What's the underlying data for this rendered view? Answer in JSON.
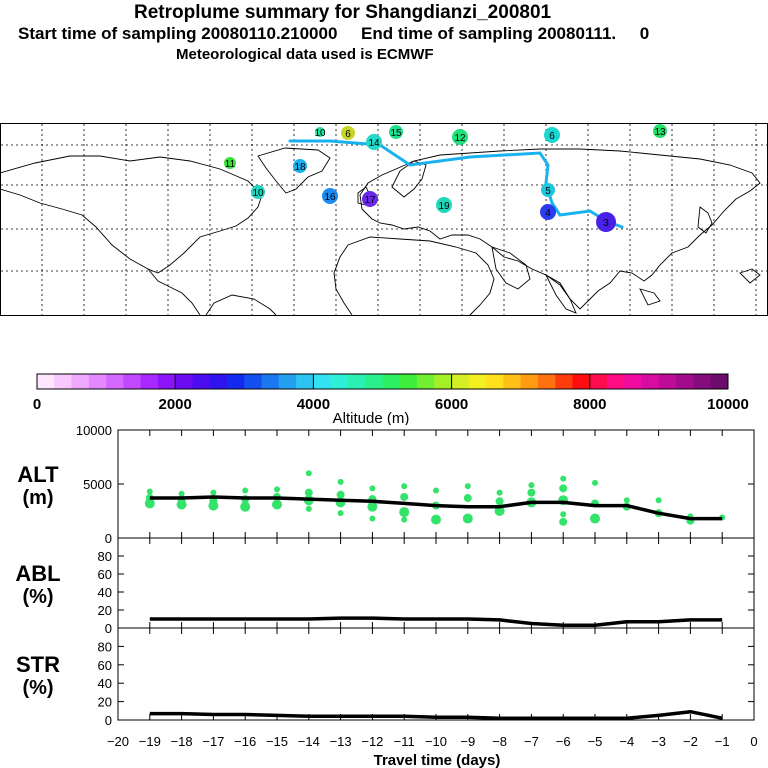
{
  "titles": {
    "line1": "Retroplume summary for Shangdianzi_200801",
    "line2": "Start time of sampling 20080110.210000     End time of sampling 20080111.     0",
    "line3": "Meteorological data used is ECMWF"
  },
  "colors": {
    "mean_line": "#000000",
    "points": "#33e36a",
    "plume_path": "#1ab2ee"
  },
  "map_labels": [
    {
      "day": "10",
      "color": "#22e0a0"
    },
    {
      "day": "6",
      "color": "#c8d42a"
    },
    {
      "day": "14",
      "color": "#22d8c8"
    },
    {
      "day": "15",
      "color": "#1ee090"
    },
    {
      "day": "12",
      "color": "#1fe07a"
    },
    {
      "day": "6",
      "color": "#1cd6d0"
    },
    {
      "day": "13",
      "color": "#22e06a"
    },
    {
      "day": "18",
      "color": "#1ab2ee"
    },
    {
      "day": "11",
      "color": "#3ce03a"
    },
    {
      "day": "10",
      "color": "#1cd6c0"
    },
    {
      "day": "16",
      "color": "#1a8cf0"
    },
    {
      "day": "17",
      "color": "#6a28e8"
    },
    {
      "day": "19",
      "color": "#1ed8b8"
    },
    {
      "day": "5",
      "color": "#1cc8e0"
    },
    {
      "day": "4",
      "color": "#2a3cf0"
    },
    {
      "day": "3",
      "color": "#4a20e8"
    }
  ],
  "colorbar": {
    "tick_labels": [
      "0",
      "2000",
      "4000",
      "6000",
      "8000",
      "10000"
    ],
    "title": "Altitude (m)",
    "range": [
      0,
      10000
    ],
    "colors": [
      "#ffe6ff",
      "#f8c8ff",
      "#f0a8ff",
      "#e488ff",
      "#d468ff",
      "#c048ff",
      "#a828ff",
      "#8c14f8",
      "#6c0cf0",
      "#4c0cf0",
      "#3014f0",
      "#1428f0",
      "#1450f0",
      "#1c78f0",
      "#24a0f0",
      "#2cc4f0",
      "#32e2f0",
      "#2ef0d8",
      "#2af0b4",
      "#2af08c",
      "#2ef064",
      "#3ef03c",
      "#70f030",
      "#a4f028",
      "#d4f024",
      "#f4f020",
      "#ffe01c",
      "#ffc018",
      "#ff9c14",
      "#ff7010",
      "#ff3c0c",
      "#ff0c10",
      "#ff0c50",
      "#ff0c84",
      "#f00ca0",
      "#d80ca0",
      "#bc0c98",
      "#a00c8c",
      "#840c7c",
      "#6c0c6c"
    ]
  },
  "chart_data": {
    "type": "scatter",
    "xlabel": "Travel time (days)",
    "x_ticks": [
      "-20",
      "-19",
      "-18",
      "-17",
      "-16",
      "-15",
      "-14",
      "-13",
      "-12",
      "-11",
      "-10",
      "-9",
      "-8",
      "-7",
      "-6",
      "-5",
      "-4",
      "-3",
      "-2",
      "-1",
      "0"
    ],
    "xlim": [
      -20,
      0
    ],
    "panels": [
      {
        "name": "alt",
        "ylabel": "ALT",
        "yunit": "(m)",
        "ylim": [
          0,
          10000
        ],
        "y_ticks": [
          "0",
          "5000",
          "10000"
        ],
        "mean_series": {
          "x": [
            -19,
            -18,
            -17,
            -16,
            -15,
            -14,
            -13,
            -12,
            -11,
            -10,
            -9,
            -8,
            -7,
            -6,
            -5,
            -4,
            -3,
            -2,
            -1
          ],
          "y": [
            3700,
            3700,
            3800,
            3700,
            3700,
            3600,
            3500,
            3400,
            3200,
            3000,
            2900,
            2900,
            3300,
            3300,
            3000,
            3000,
            2300,
            1800,
            1800
          ]
        },
        "points": [
          {
            "x": -19,
            "y": [
              4300,
              3700,
              3200
            ]
          },
          {
            "x": -18,
            "y": [
              4100,
              3600,
              3100
            ]
          },
          {
            "x": -17,
            "y": [
              4200,
              3500,
              3000
            ]
          },
          {
            "x": -16,
            "y": [
              4400,
              3600,
              2900
            ]
          },
          {
            "x": -15,
            "y": [
              4500,
              3800,
              3100
            ]
          },
          {
            "x": -14,
            "y": [
              6000,
              4200,
              3500,
              2700
            ]
          },
          {
            "x": -13,
            "y": [
              5200,
              4000,
              3300,
              2300
            ]
          },
          {
            "x": -12,
            "y": [
              4600,
              3600,
              2900,
              1800
            ]
          },
          {
            "x": -11,
            "y": [
              4800,
              3800,
              2400,
              1700
            ]
          },
          {
            "x": -10,
            "y": [
              4400,
              3000,
              1700
            ]
          },
          {
            "x": -9,
            "y": [
              4800,
              3700,
              1800
            ]
          },
          {
            "x": -8,
            "y": [
              4200,
              3400,
              2500
            ]
          },
          {
            "x": -7,
            "y": [
              4900,
              4200,
              3300
            ]
          },
          {
            "x": -6,
            "y": [
              5500,
              4600,
              3500,
              2200,
              1500
            ]
          },
          {
            "x": -5,
            "y": [
              5100,
              3200,
              1800
            ]
          },
          {
            "x": -4,
            "y": [
              3500,
              2900
            ]
          },
          {
            "x": -3,
            "y": [
              3500,
              2300
            ]
          },
          {
            "x": -2,
            "y": [
              2000,
              1600
            ]
          },
          {
            "x": -1,
            "y": [
              1900
            ]
          }
        ]
      },
      {
        "name": "abl",
        "ylabel": "ABL",
        "yunit": "(%)",
        "ylim": [
          0,
          100
        ],
        "y_ticks": [
          "0",
          "20",
          "40",
          "60",
          "80"
        ],
        "mean_series": {
          "x": [
            -19,
            -18,
            -17,
            -16,
            -15,
            -14,
            -13,
            -12,
            -11,
            -10,
            -9,
            -8,
            -7,
            -6,
            -5,
            -4,
            -3,
            -2,
            -1
          ],
          "y": [
            10,
            10,
            10,
            10,
            10,
            10,
            11,
            11,
            10,
            10,
            10,
            9,
            5,
            3,
            3,
            7,
            7,
            9,
            9
          ]
        }
      },
      {
        "name": "str",
        "ylabel": "STR",
        "yunit": "(%)",
        "ylim": [
          0,
          100
        ],
        "y_ticks": [
          "0",
          "20",
          "40",
          "60",
          "80"
        ],
        "mean_series": {
          "x": [
            -19,
            -18,
            -17,
            -16,
            -15,
            -14,
            -13,
            -12,
            -11,
            -10,
            -9,
            -8,
            -7,
            -6,
            -5,
            -4,
            -3,
            -2,
            -1
          ],
          "y": [
            7,
            7,
            6,
            6,
            5,
            4,
            4,
            4,
            4,
            3,
            3,
            2,
            2,
            2,
            2,
            2,
            5,
            9,
            2
          ]
        }
      }
    ]
  }
}
